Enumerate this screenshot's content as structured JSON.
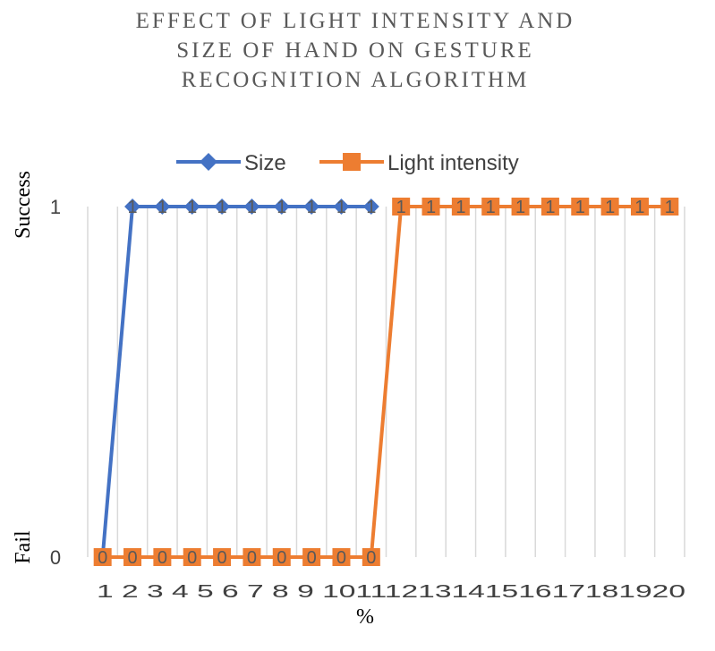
{
  "chart_data": {
    "type": "line",
    "title_lines": [
      "EFFECT OF LIGHT INTENSITY AND",
      "SIZE OF HAND ON GESTURE",
      "RECOGNITION ALGORITHM"
    ],
    "xlabel": "%",
    "categories": [
      "1",
      "2",
      "3",
      "4",
      "5",
      "6",
      "7",
      "8",
      "9",
      "10",
      "11",
      "12",
      "13",
      "14",
      "15",
      "16",
      "17",
      "18",
      "19",
      "20"
    ],
    "x_tick_text": "1 2 3 4 5 6 7 8 9 1011121314151617181920",
    "y_ticks": [
      {
        "value": 1,
        "label": "1",
        "name": "Success"
      },
      {
        "value": 0,
        "label": "0",
        "name": "Fail"
      }
    ],
    "ylim": [
      0,
      1
    ],
    "grid": "vertical",
    "legend_position": "top",
    "series": [
      {
        "name": "Size",
        "color": "#4472c4",
        "marker": "diamond",
        "values": [
          0,
          1,
          1,
          1,
          1,
          1,
          1,
          1,
          1,
          1,
          null,
          null,
          null,
          null,
          null,
          null,
          null,
          null,
          null,
          null
        ],
        "data_labels": [
          "",
          "1",
          "1",
          "1",
          "1",
          "1",
          "1",
          "1",
          "1",
          "1",
          "",
          "",
          "",
          "",
          "",
          "",
          "",
          "",
          "",
          ""
        ]
      },
      {
        "name": "Light intensity",
        "color": "#ed7d31",
        "marker": "square",
        "values": [
          0,
          0,
          0,
          0,
          0,
          0,
          0,
          0,
          0,
          0,
          1,
          1,
          1,
          1,
          1,
          1,
          1,
          1,
          1,
          1
        ],
        "data_labels": [
          "0",
          "0",
          "0",
          "0",
          "0",
          "0",
          "0",
          "0",
          "0",
          "0",
          "1",
          "1",
          "1",
          "1",
          "1",
          "1",
          "1",
          "1",
          "1",
          "1"
        ]
      }
    ]
  }
}
